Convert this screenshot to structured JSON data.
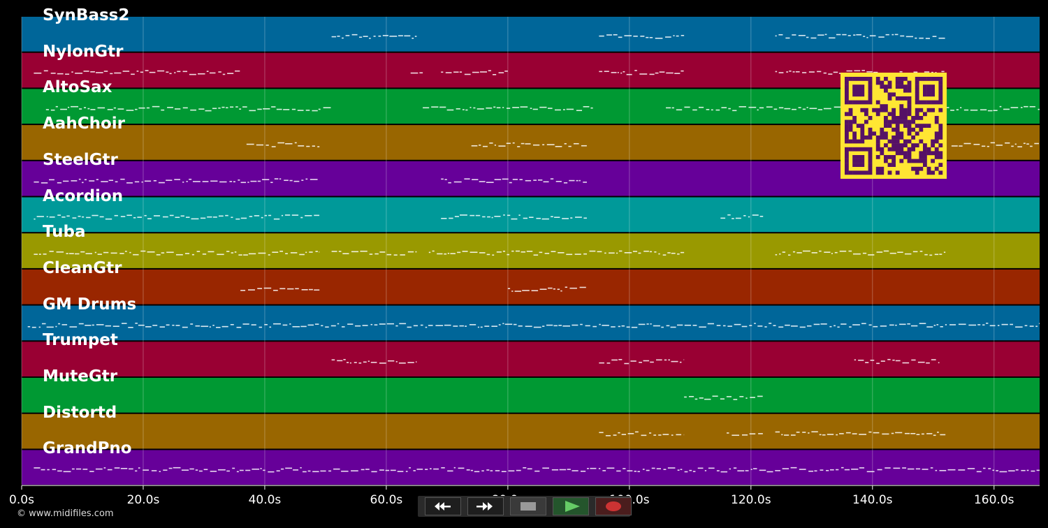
{
  "tracks": [
    {
      "name": "SynBass2",
      "color": "#006699"
    },
    {
      "name": "NylonGtr",
      "color": "#990033"
    },
    {
      "name": "AltoSax",
      "color": "#009933"
    },
    {
      "name": "AahChoir",
      "color": "#996600"
    },
    {
      "name": "SteelGtr",
      "color": "#660099"
    },
    {
      "name": "Acordion",
      "color": "#009999"
    },
    {
      "name": "Tuba",
      "color": "#999900"
    },
    {
      "name": "CleanGtr",
      "color": "#992600"
    },
    {
      "name": "GM Drums",
      "color": "#006699"
    },
    {
      "name": "Trumpet",
      "color": "#990033"
    },
    {
      "name": "MuteGtr",
      "color": "#009933"
    },
    {
      "name": "Distortd",
      "color": "#996600"
    },
    {
      "name": "GrandPno",
      "color": "#660099"
    }
  ],
  "time_axis": {
    "min_seconds": 0,
    "max_seconds": 167.5,
    "ticks": [
      {
        "value": 0,
        "label": "0.0s"
      },
      {
        "value": 20,
        "label": "20.0s"
      },
      {
        "value": 40,
        "label": "40.0s"
      },
      {
        "value": 60,
        "label": "60.0s"
      },
      {
        "value": 80,
        "label": "80.0s"
      },
      {
        "value": 100,
        "label": "100.0s"
      },
      {
        "value": 120,
        "label": "120.0s"
      },
      {
        "value": 140,
        "label": "140.0s"
      },
      {
        "value": 160,
        "label": "160.0s"
      }
    ]
  },
  "copyright": "© www.midifiles.com",
  "qr_code": {
    "icon": "qr-code-icon",
    "fg": "#551166",
    "bg": "#ffe633"
  },
  "transport": {
    "rewind_icon": "rewind-icon",
    "fast_forward_icon": "fast-forward-icon",
    "stop_icon": "stop-icon",
    "play_icon": "play-icon",
    "record_icon": "record-icon",
    "play_color": "#66cc66",
    "record_color": "#cc3333"
  },
  "note_activity_seconds": [
    [
      [
        51,
        65
      ],
      [
        95,
        109
      ],
      [
        124,
        152
      ]
    ],
    [
      [
        2,
        36
      ],
      [
        64,
        66
      ],
      [
        69,
        80
      ],
      [
        95,
        109
      ],
      [
        124,
        152
      ]
    ],
    [
      [
        4,
        51
      ],
      [
        66,
        94
      ],
      [
        106,
        167.5
      ]
    ],
    [
      [
        37,
        49
      ],
      [
        74,
        93
      ],
      [
        153,
        167.5
      ]
    ],
    [
      [
        2,
        49
      ],
      [
        69,
        93
      ]
    ],
    [
      [
        2,
        49
      ],
      [
        69,
        93
      ],
      [
        115,
        122
      ]
    ],
    [
      [
        2,
        49
      ],
      [
        51,
        65
      ],
      [
        67,
        109
      ],
      [
        124,
        152
      ]
    ],
    [
      [
        36,
        49
      ],
      [
        80,
        93
      ]
    ],
    [
      [
        1,
        167.5
      ]
    ],
    [
      [
        51,
        65
      ],
      [
        95,
        109
      ],
      [
        137,
        151
      ]
    ],
    [
      [
        109,
        122
      ]
    ],
    [
      [
        95,
        109
      ],
      [
        116,
        122
      ],
      [
        124,
        152
      ]
    ],
    [
      [
        2,
        167.5
      ]
    ]
  ]
}
